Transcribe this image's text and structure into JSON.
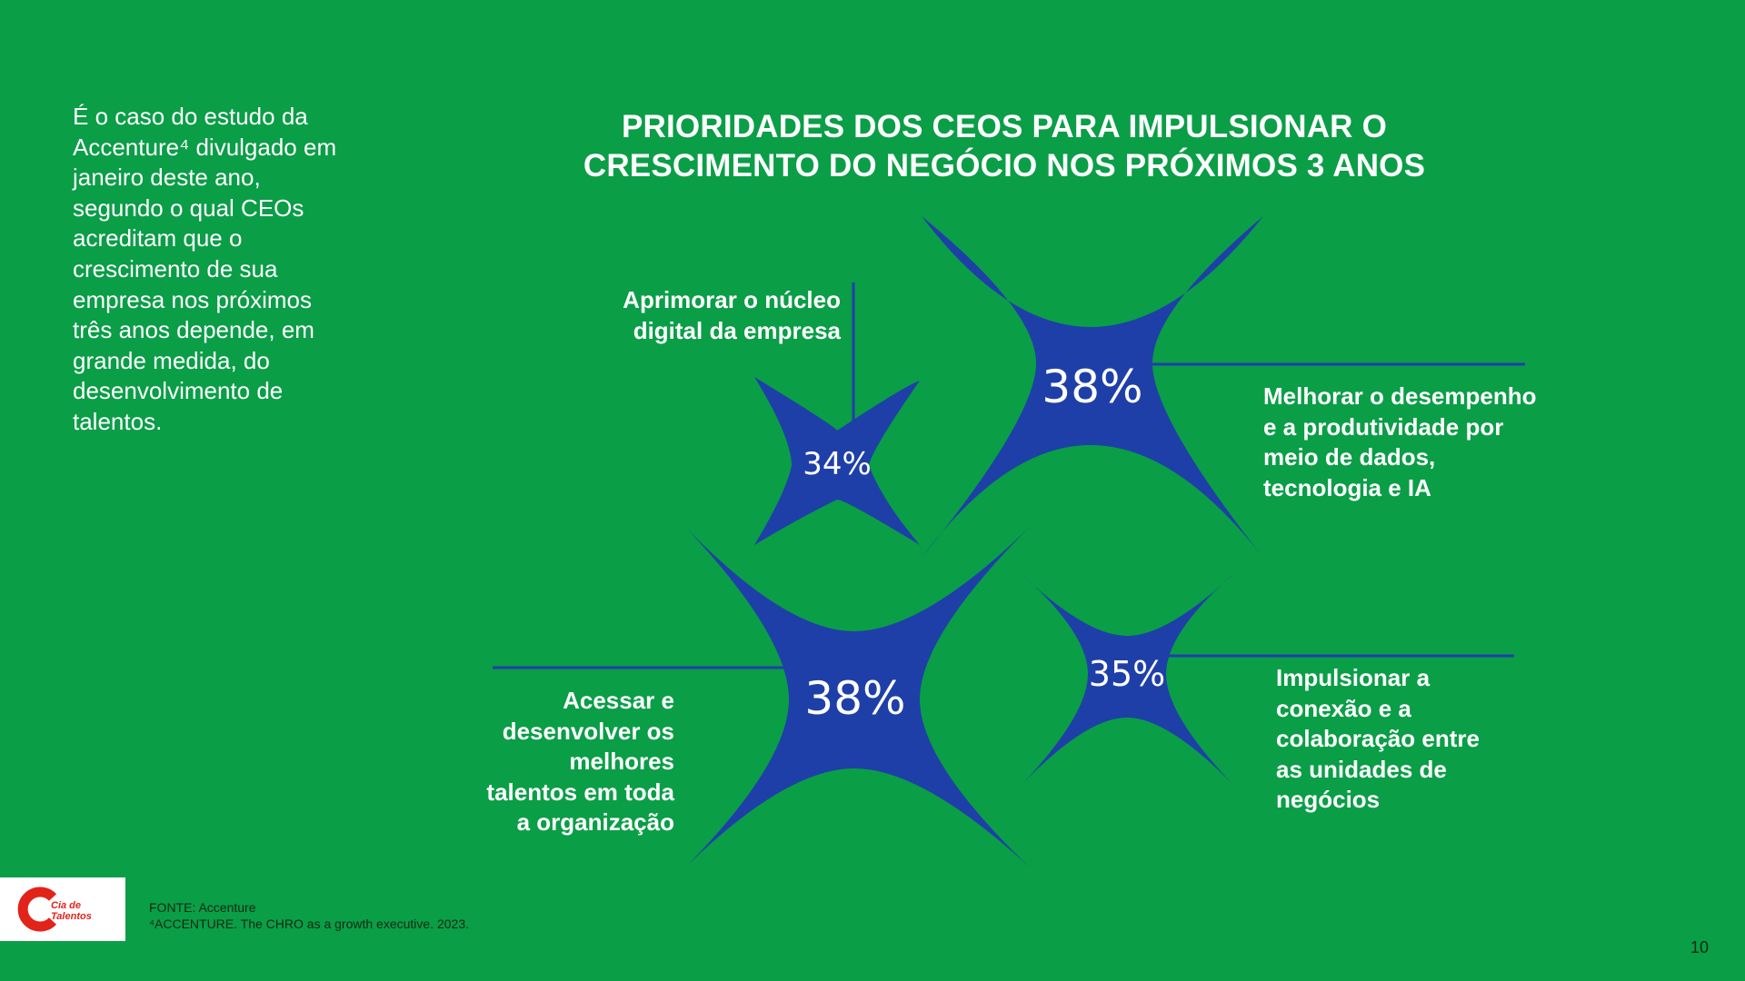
{
  "intro": {
    "lines": [
      "É o caso do estudo da",
      "Accenture⁴ divulgado em",
      "janeiro deste ano,",
      "segundo o qual CEOs",
      "acreditam que o",
      "crescimento de sua",
      "empresa nos próximos",
      "três anos depende, em",
      "grande medida, do",
      "desenvolvimento de",
      "talentos."
    ]
  },
  "title": {
    "line1": "PRIORIDADES DOS CEOS PARA IMPULSIONAR O",
    "line2": "CRESCIMENTO DO NEGÓCIO NOS PRÓXIMOS 3 ANOS"
  },
  "items": [
    {
      "percent": "34%",
      "label_lines": [
        "Aprimorar o núcleo",
        "digital da empresa"
      ]
    },
    {
      "percent": "38%",
      "label_lines": [
        "Melhorar o desempenho",
        "e a produtividade por",
        "meio de dados,",
        "tecnologia e IA"
      ]
    },
    {
      "percent": "38%",
      "label_lines": [
        "Acessar e",
        "desenvolver os",
        "melhores",
        "talentos em toda",
        "a organização"
      ]
    },
    {
      "percent": "35%",
      "label_lines": [
        "Impulsionar a",
        "conexão e a",
        "colaboração entre",
        "as unidades de",
        "negócios"
      ]
    }
  ],
  "colors": {
    "background": "#0a9e47",
    "star": "#1f3fa8",
    "text": "#ffffff",
    "logo_red": "#e2231a"
  },
  "logo": {
    "line1": "Cia de",
    "line2": "Talentos"
  },
  "footer": {
    "source": "FONTE: Accenture",
    "reference": "⁴ACCENTURE. The CHRO as a growth executive. 2023."
  },
  "page_number": "10"
}
